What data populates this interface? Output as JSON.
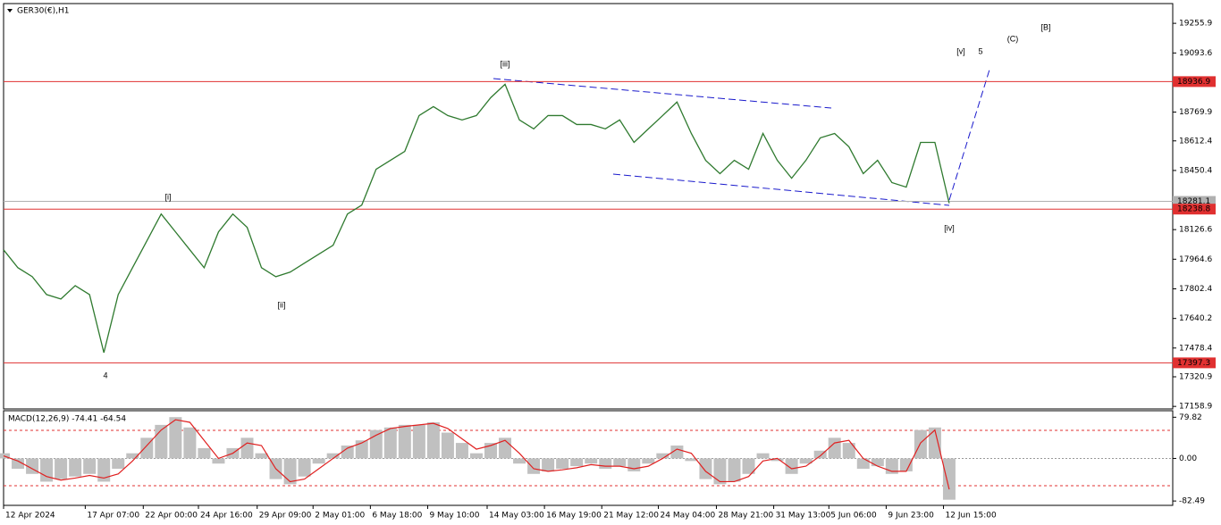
{
  "symbol": "GER30(€),H1",
  "chart_data": [
    {
      "type": "line",
      "xlim": [
        0,
        81.6
      ],
      "xticks": [
        {
          "value": 0,
          "label": "12 Apr 2024"
        },
        {
          "value": 5.7,
          "label": "17 Apr 07:00"
        },
        {
          "value": 9.75,
          "label": "22 Apr 00:00"
        },
        {
          "value": 13.6,
          "label": "24 Apr 16:00"
        },
        {
          "value": 17.7,
          "label": "29 Apr 09:00"
        },
        {
          "value": 21.6,
          "label": "2 May 01:00"
        },
        {
          "value": 25.6,
          "label": "6 May 18:00"
        },
        {
          "value": 29.6,
          "label": "9 May 10:00"
        },
        {
          "value": 33.75,
          "label": "14 May 03:00"
        },
        {
          "value": 37.75,
          "label": "16 May 19:00"
        },
        {
          "value": 41.75,
          "label": "21 May 12:00"
        },
        {
          "value": 45.7,
          "label": "24 May 04:00"
        },
        {
          "value": 49.75,
          "label": "28 May 21:00"
        },
        {
          "value": 53.75,
          "label": "31 May 13:00"
        },
        {
          "value": 57.6,
          "label": "5 Jun 06:00"
        },
        {
          "value": 61.6,
          "label": "9 Jun 23:00"
        },
        {
          "value": 65.6,
          "label": "12 Jun 15:00"
        }
      ],
      "ylim": [
        17145,
        19364
      ],
      "yticks": [
        19255.9,
        19093.6,
        18769.9,
        18612.4,
        18450.4,
        18126.6,
        17964.6,
        17802.4,
        17640.2,
        17478.4,
        17320.9,
        17158.9
      ],
      "series": [
        {
          "color": "#2f7a2f",
          "values": [
            18016,
            17918,
            17869,
            17771,
            17747,
            17820,
            17771,
            17453,
            17771,
            17918,
            18065,
            18212,
            18114,
            18016,
            17918,
            18114,
            18212,
            18139,
            17918,
            17869,
            17894,
            17943,
            17992,
            18041,
            18212,
            18261,
            18457,
            18506,
            18555,
            18751,
            18800,
            18751,
            18727,
            18751,
            18849,
            18922,
            18727,
            18678,
            18751,
            18751,
            18702,
            18702,
            18678,
            18727,
            18604,
            18678,
            18751,
            18825,
            18653,
            18506,
            18433,
            18506,
            18457,
            18653,
            18506,
            18408,
            18506,
            18629,
            18653,
            18580,
            18433,
            18506,
            18384,
            18359,
            18604,
            18604,
            18271
          ]
        }
      ],
      "hlines": [
        {
          "value": 18936.9,
          "color": "#e03030"
        },
        {
          "value": 18281.1,
          "color": "#b0b0b0"
        },
        {
          "value": 18238.8,
          "color": "#e03030"
        },
        {
          "value": 17397.3,
          "color": "#e03030"
        }
      ],
      "annotations": [
        "[iii]",
        "[i]",
        "[ii]",
        "4",
        "[iv]",
        "[v]",
        "5",
        "(C)",
        "[B]"
      ]
    },
    {
      "type": "macd",
      "title": "MACD(12,26,9) -74.41 -64.54",
      "xlim": [
        0,
        81.6
      ],
      "ylim": [
        -84,
        89
      ],
      "yticks": [
        79.82,
        {
          "value": 0,
          "label": "0.00"
        },
        -82.49
      ],
      "series": [
        {
          "color": "#c0c0c0",
          "values": [
            10,
            -20,
            -30,
            -45,
            -40,
            -35,
            -30,
            -45,
            -20,
            10,
            40,
            65,
            80,
            60,
            20,
            -10,
            20,
            40,
            10,
            -40,
            -50,
            -35,
            -10,
            10,
            25,
            35,
            55,
            60,
            65,
            65,
            70,
            50,
            30,
            10,
            30,
            40,
            -10,
            -30,
            -25,
            -20,
            -15,
            -10,
            -20,
            -15,
            -25,
            -10,
            10,
            25,
            -5,
            -40,
            -50,
            -45,
            -30,
            10,
            -5,
            -30,
            -10,
            15,
            40,
            30,
            -20,
            -15,
            -30,
            -25,
            55,
            60,
            -80
          ]
        },
        {
          "color": "#e02020",
          "values": [
            5,
            -5,
            -20,
            -35,
            -42,
            -38,
            -33,
            -38,
            -30,
            -5,
            25,
            55,
            75,
            70,
            35,
            0,
            10,
            30,
            25,
            -20,
            -45,
            -40,
            -20,
            0,
            20,
            30,
            45,
            58,
            62,
            65,
            68,
            58,
            38,
            18,
            25,
            35,
            10,
            -20,
            -25,
            -22,
            -18,
            -12,
            -15,
            -15,
            -20,
            -15,
            0,
            18,
            10,
            -25,
            -45,
            -45,
            -35,
            -5,
            0,
            -20,
            -15,
            5,
            30,
            35,
            0,
            -15,
            -25,
            -25,
            30,
            55,
            -60
          ]
        }
      ]
    }
  ]
}
